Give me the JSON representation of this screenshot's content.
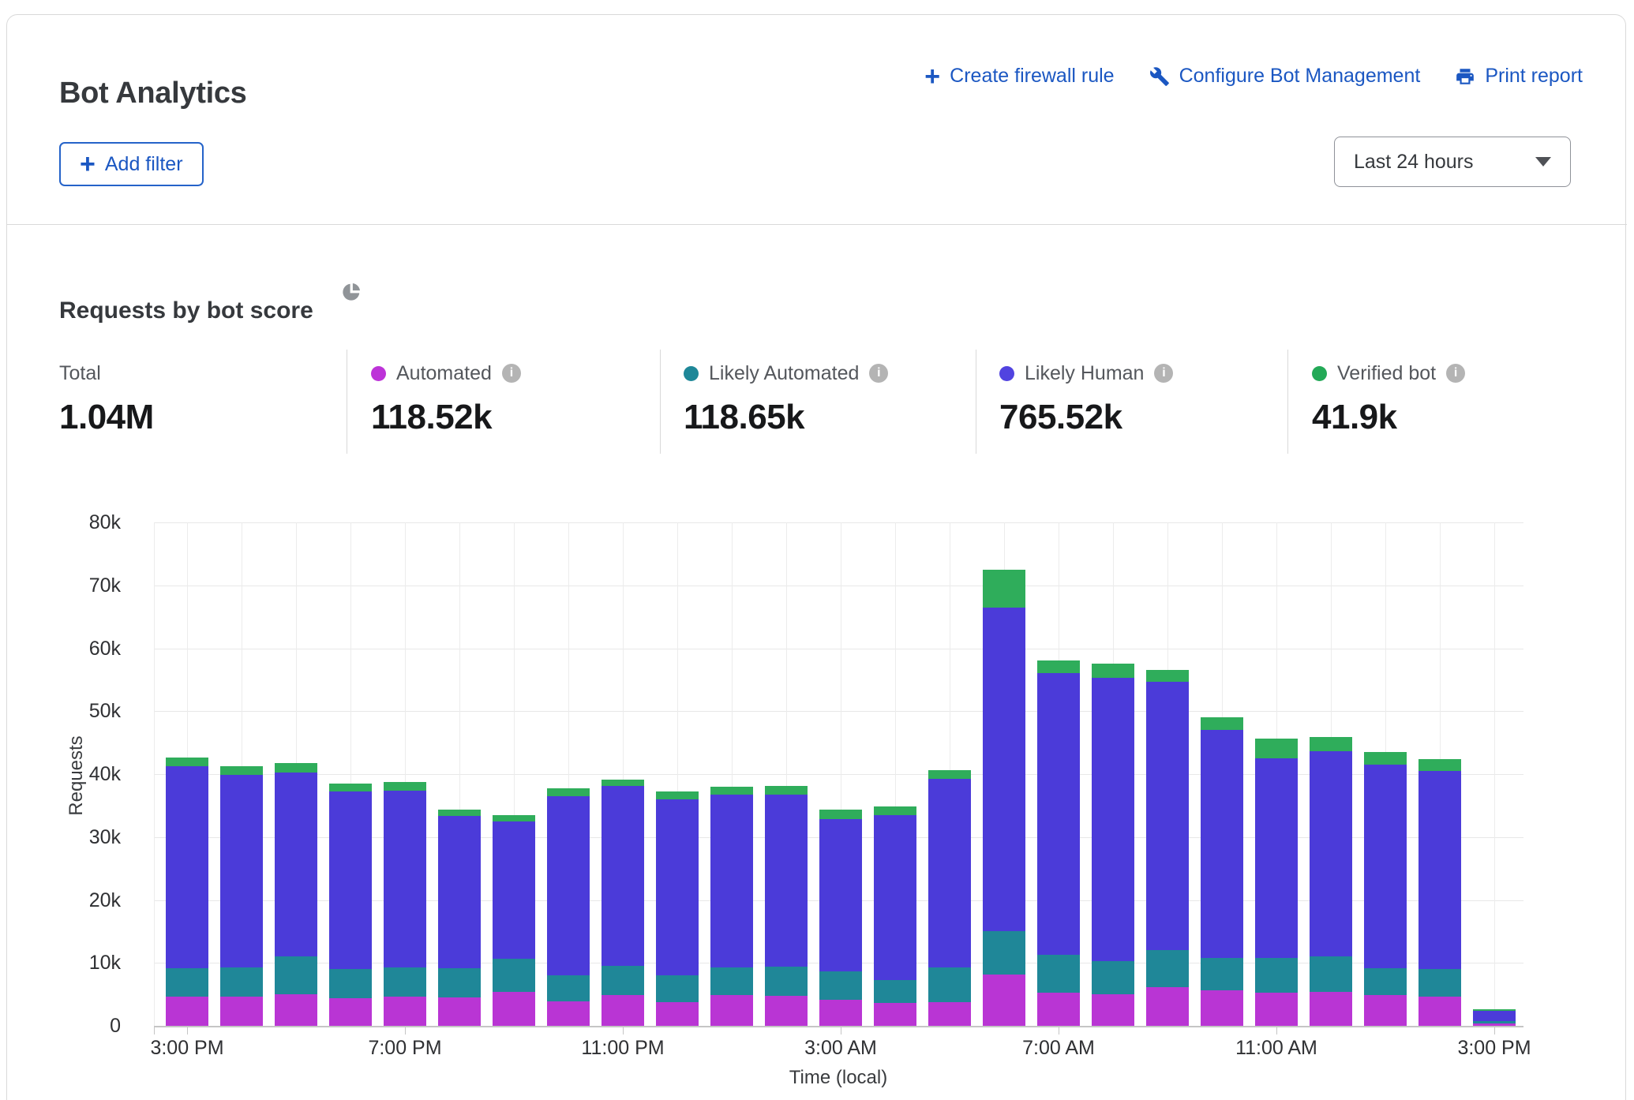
{
  "header": {
    "title": "Bot Analytics",
    "actions": [
      {
        "label": "Create firewall rule",
        "icon": "plus-icon"
      },
      {
        "label": "Configure Bot Management",
        "icon": "wrench-icon"
      },
      {
        "label": "Print report",
        "icon": "printer-icon"
      }
    ],
    "add_filter_label": "Add filter",
    "time_range": {
      "selected": "Last 24 hours"
    }
  },
  "section": {
    "heading": "Requests by bot score",
    "stats": [
      {
        "label": "Total",
        "value": "1.04M",
        "color": null,
        "info": false
      },
      {
        "label": "Automated",
        "value": "118.52k",
        "color": "#bd33d8",
        "info": true
      },
      {
        "label": "Likely Automated",
        "value": "118.65k",
        "color": "#1e8798",
        "info": true
      },
      {
        "label": "Likely Human",
        "value": "765.52k",
        "color": "#5143e0",
        "info": true
      },
      {
        "label": "Verified bot",
        "value": "41.9k",
        "color": "#23a957",
        "info": true
      }
    ]
  },
  "chart_data": {
    "type": "bar",
    "stacked": true,
    "title": "Requests by bot score",
    "xlabel": "Time (local)",
    "ylabel": "Requests",
    "ylim": [
      0,
      80000
    ],
    "grid": true,
    "y_ticks": [
      "0",
      "10k",
      "20k",
      "30k",
      "40k",
      "50k",
      "60k",
      "70k",
      "80k"
    ],
    "x_tick_every": 4,
    "x_tick_labels": [
      "3:00 PM",
      "7:00 PM",
      "11:00 PM",
      "3:00 AM",
      "7:00 AM",
      "11:00 AM",
      "3:00 PM"
    ],
    "categories": [
      "3:00 PM",
      "4:00 PM",
      "5:00 PM",
      "6:00 PM",
      "7:00 PM",
      "8:00 PM",
      "9:00 PM",
      "10:00 PM",
      "11:00 PM",
      "12:00 AM",
      "1:00 AM",
      "2:00 AM",
      "3:00 AM",
      "4:00 AM",
      "5:00 AM",
      "6:00 AM",
      "7:00 AM",
      "8:00 AM",
      "9:00 AM",
      "10:00 AM",
      "11:00 AM",
      "12:00 PM",
      "1:00 PM",
      "2:00 PM",
      "3:00 PM"
    ],
    "series": [
      {
        "name": "Automated",
        "color": "#b935d4",
        "values": [
          4700,
          4700,
          5000,
          4400,
          4700,
          4500,
          5400,
          3900,
          4900,
          3800,
          4900,
          4800,
          4100,
          3700,
          3800,
          8200,
          5300,
          5000,
          6200,
          5600,
          5300,
          5400,
          4900,
          4600,
          400
        ]
      },
      {
        "name": "Likely Automated",
        "color": "#1f8798",
        "values": [
          4500,
          4600,
          6000,
          4600,
          4600,
          4700,
          5200,
          4100,
          4600,
          4200,
          4400,
          4600,
          4500,
          3600,
          5500,
          6800,
          6000,
          5300,
          5900,
          5200,
          5500,
          5600,
          4300,
          4400,
          300
        ]
      },
      {
        "name": "Likely Human",
        "color": "#4b3bd9",
        "values": [
          32100,
          30600,
          29200,
          28300,
          28100,
          24100,
          21900,
          28500,
          28600,
          28000,
          27500,
          27400,
          24200,
          26200,
          29900,
          51500,
          44700,
          45000,
          42600,
          36200,
          31700,
          32600,
          32300,
          31500,
          1700
        ]
      },
      {
        "name": "Verified bot",
        "color": "#2fad5b",
        "values": [
          1300,
          1400,
          1500,
          1200,
          1400,
          1100,
          1000,
          1200,
          1000,
          1300,
          1200,
          1300,
          1500,
          1300,
          1400,
          6000,
          2000,
          2200,
          1900,
          2000,
          3100,
          2300,
          2000,
          1900,
          200
        ]
      }
    ],
    "totals": {
      "total": "1.04M",
      "automated": "118.52k",
      "likely_automated": "118.65k",
      "likely_human": "765.52k",
      "verified_bot": "41.9k"
    }
  }
}
